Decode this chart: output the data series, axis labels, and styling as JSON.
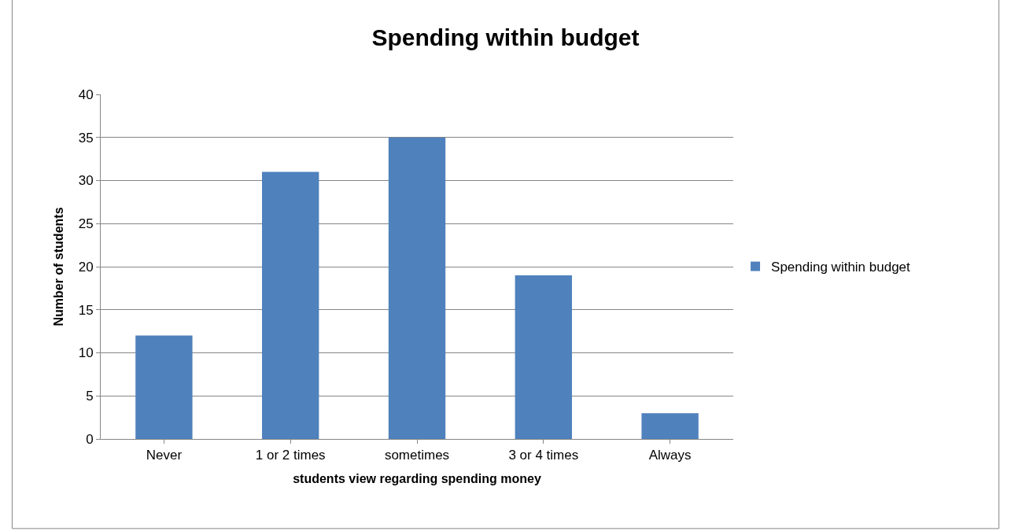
{
  "chart_data": {
    "type": "bar",
    "title": "Spending within budget",
    "xlabel": "students view regarding spending money",
    "ylabel": "Number of students",
    "categories": [
      "Never",
      "1 or 2 times",
      "sometimes",
      "3 or 4 times",
      "Always"
    ],
    "series": [
      {
        "name": "Spending within budget",
        "color": "#4f81bd",
        "values": [
          12,
          31,
          35,
          19,
          3
        ]
      }
    ],
    "ylim": [
      0,
      40
    ],
    "yticks": [
      0,
      5,
      10,
      15,
      20,
      25,
      30,
      35,
      40
    ],
    "grid": "y",
    "legend": "right"
  }
}
